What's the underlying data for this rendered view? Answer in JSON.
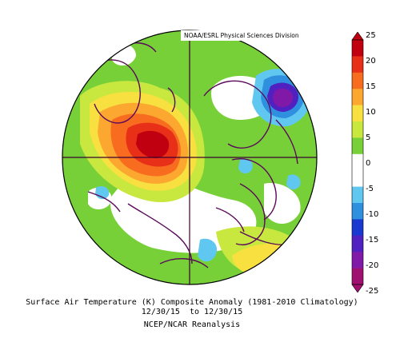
{
  "credit": "NOAA/ESRL Physical Sciences Division",
  "colorbar": {
    "labels": [
      "25",
      "20",
      "15",
      "10",
      "5",
      "0",
      "-5",
      "-10",
      "-15",
      "-20",
      "-25"
    ],
    "colors": [
      "#c00010",
      "#e83018",
      "#f86c20",
      "#fca830",
      "#f8e040",
      "#c8e840",
      "#78d038",
      "#ffffff",
      "#ffffff",
      "#60c8f0",
      "#3090e0",
      "#1838d0",
      "#5020c0",
      "#8018a8",
      "#a01070"
    ]
  },
  "caption": {
    "line1": "Surface Air Temperature (K) Composite Anomaly (1981-2010 Climatology)",
    "line2": "12/30/15  to 12/30/15",
    "line3": "NCEP/NCAR Reanalysis"
  }
}
